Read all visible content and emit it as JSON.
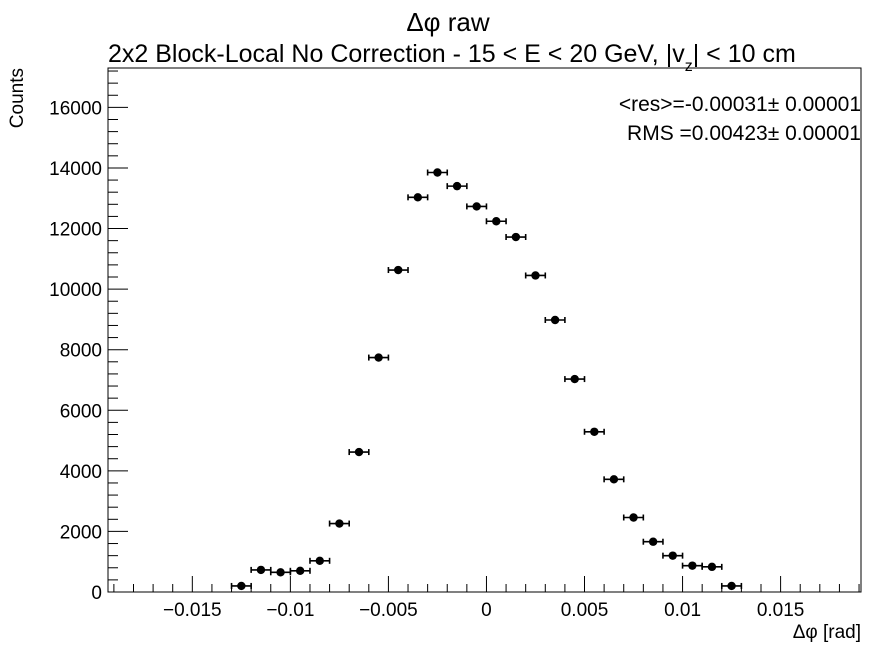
{
  "chart_data": {
    "type": "scatter",
    "title": "Δφ raw",
    "subtitle": "2x2 Block-Local No Correction   -   15 < E < 20 GeV, |v_z| < 10 cm",
    "subtitle_parts": {
      "main": "2x2 Block-Local No Correction   -   15 < E < 20 GeV, |v",
      "sub": "z",
      "tail": "| < 10 cm"
    },
    "xlabel": "Δφ  [rad]",
    "ylabel": "Counts",
    "xlim": [
      -0.0193,
      0.0191
    ],
    "ylim": [
      0,
      17300
    ],
    "xticks": [
      -0.015,
      -0.01,
      -0.005,
      0,
      0.005,
      0.01,
      0.015
    ],
    "xtick_labels": [
      "−0.015",
      "−0.01",
      "−0.005",
      "0",
      "0.005",
      "0.01",
      "0.015"
    ],
    "yticks": [
      0,
      2000,
      4000,
      6000,
      8000,
      10000,
      12000,
      14000,
      16000
    ],
    "ytick_labels": [
      "0",
      "2000",
      "4000",
      "6000",
      "8000",
      "10000",
      "12000",
      "14000",
      "16000"
    ],
    "bin_half_width": 0.0005,
    "x": [
      -0.0125,
      -0.0115,
      -0.0105,
      -0.0095,
      -0.0085,
      -0.0075,
      -0.0065,
      -0.0055,
      -0.0045,
      -0.0035,
      -0.0025,
      -0.0015,
      -0.0005,
      0.0005,
      0.0015,
      0.0025,
      0.0035,
      0.0045,
      0.0055,
      0.0065,
      0.0075,
      0.0085,
      0.0095,
      0.0105,
      0.0115,
      0.0125
    ],
    "y": [
      200,
      730,
      650,
      700,
      1030,
      2260,
      4620,
      7740,
      10630,
      13030,
      13850,
      13400,
      12730,
      12240,
      11720,
      10450,
      8980,
      7030,
      5290,
      3720,
      2460,
      1660,
      1200,
      870,
      830,
      200
    ],
    "stats": {
      "res_line": "<res>=-0.00031± 0.00001",
      "rms_line": "RMS =0.00423± 0.00001"
    }
  }
}
